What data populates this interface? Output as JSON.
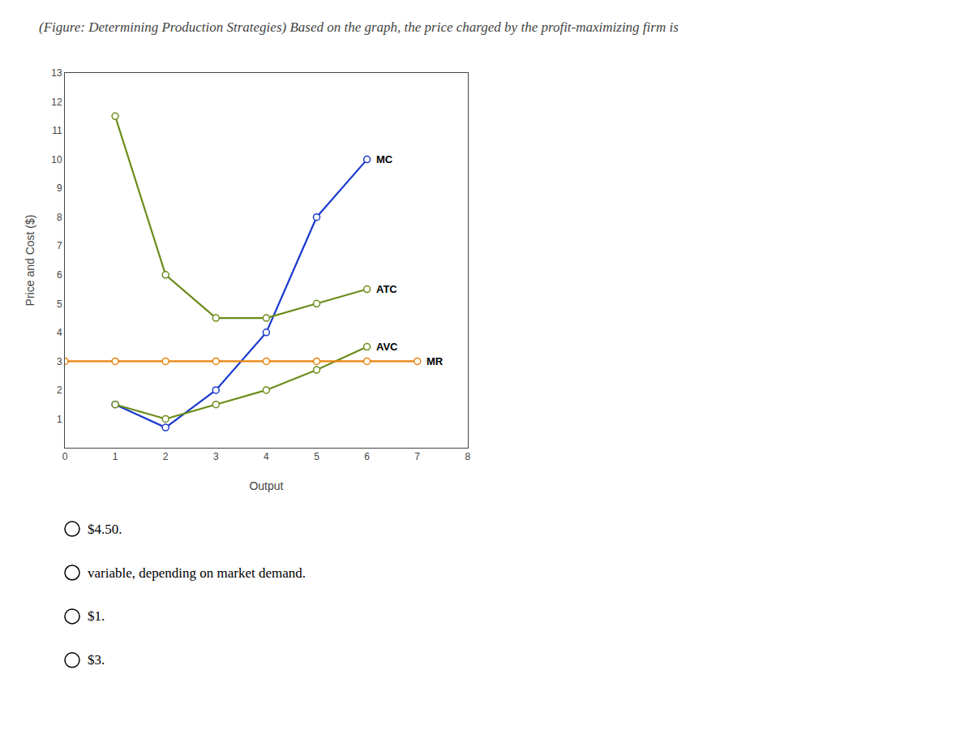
{
  "chart_data": {
    "type": "line",
    "title": "(Figure: Determining Production Strategies) Based on the graph, the price charged by the profit-maximizing firm is",
    "xlabel": "Output",
    "ylabel": "Price and Cost ($)",
    "xlim": [
      0,
      8
    ],
    "ylim": [
      0,
      13
    ],
    "xticks": [
      0,
      1,
      2,
      3,
      4,
      5,
      6,
      7,
      8
    ],
    "yticks": [
      1,
      2,
      3,
      4,
      5,
      6,
      7,
      8,
      9,
      10,
      11,
      12,
      13
    ],
    "grid": false,
    "marker": "circle",
    "series": [
      {
        "name": "MC",
        "color": "#1a3acc",
        "x": [
          1,
          2,
          3,
          4,
          5,
          6
        ],
        "values": [
          1.5,
          0.7,
          2.0,
          4.0,
          8.0,
          10.0
        ]
      },
      {
        "name": "ATC",
        "color": "#6b8c1a",
        "x": [
          1,
          2,
          3,
          4,
          5,
          6
        ],
        "values": [
          11.5,
          6.0,
          4.5,
          4.5,
          5.0,
          5.5
        ]
      },
      {
        "name": "AVC",
        "color": "#6b8c1a",
        "x": [
          1,
          2,
          3,
          4,
          5,
          6
        ],
        "values": [
          1.5,
          1.0,
          1.5,
          2.0,
          2.7,
          3.5
        ]
      },
      {
        "name": "MR",
        "color": "#e8820a",
        "x": [
          0,
          1,
          2,
          3,
          4,
          5,
          6,
          7
        ],
        "values": [
          3,
          3,
          3,
          3,
          3,
          3,
          3,
          3
        ]
      }
    ],
    "annotations": [
      "$4.50.",
      "variable, depending on market demand.",
      "$1.",
      "$3."
    ]
  }
}
